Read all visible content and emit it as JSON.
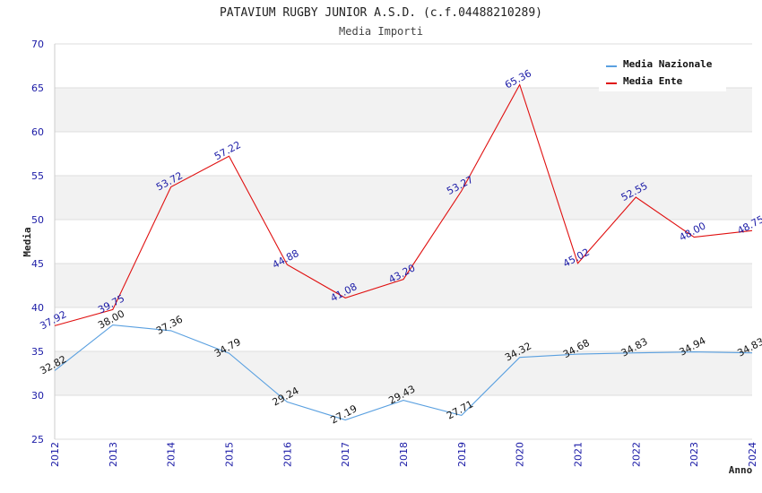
{
  "header": {
    "title": "PATAVIUM RUGBY JUNIOR A.S.D. (c.f.04488210289)",
    "subtitle": "Media Importi"
  },
  "chart_data": {
    "type": "line",
    "title": "PATAVIUM RUGBY JUNIOR A.S.D. (c.f.04488210289)",
    "subtitle": "Media Importi",
    "xlabel": "Anno",
    "ylabel": "Media",
    "ylim": [
      25,
      70
    ],
    "yticks": [
      25,
      30,
      35,
      40,
      45,
      50,
      55,
      60,
      65,
      70
    ],
    "categories": [
      "2012",
      "2013",
      "2014",
      "2015",
      "2016",
      "2017",
      "2018",
      "2019",
      "2020",
      "2021",
      "2022",
      "2023",
      "2024"
    ],
    "legend_position": "top-right",
    "grid": true,
    "series": [
      {
        "name": "Media Nazionale",
        "color": "#5aa0e0",
        "label_color": "#111111",
        "values": [
          32.82,
          38.0,
          37.36,
          34.79,
          29.24,
          27.19,
          29.43,
          27.71,
          34.32,
          34.68,
          34.83,
          34.94,
          34.83
        ],
        "labels": [
          "32.82",
          "38.00",
          "37.36",
          "34.79",
          "29.24",
          "27.19",
          "29.43",
          "27.71",
          "34.32",
          "34.68",
          "34.83",
          "34.94",
          "34.83"
        ]
      },
      {
        "name": "Media Ente",
        "color": "#e01010",
        "label_color": "#1a1aa6",
        "values": [
          37.92,
          39.75,
          53.72,
          57.22,
          44.88,
          41.08,
          43.2,
          53.27,
          65.36,
          45.02,
          52.55,
          48.0,
          48.75
        ],
        "labels": [
          "37.92",
          "39.75",
          "53.72",
          "57.22",
          "44.88",
          "41.08",
          "43.20",
          "53.27",
          "65.36",
          "45.02",
          "52.55",
          "48.00",
          "48.75"
        ]
      }
    ]
  }
}
